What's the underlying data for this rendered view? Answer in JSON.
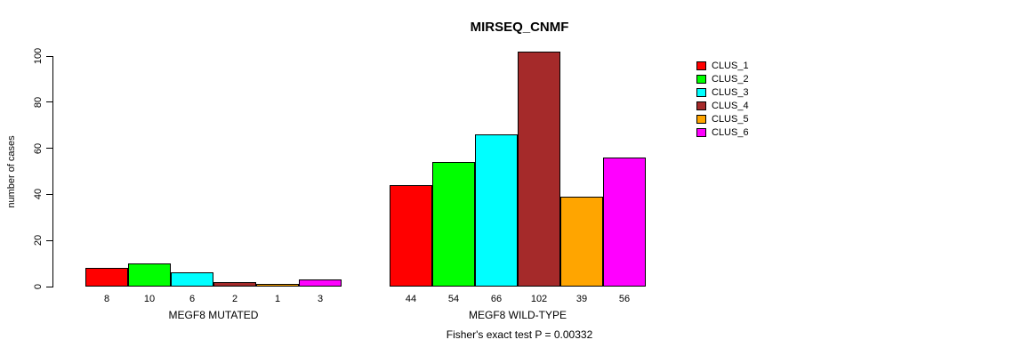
{
  "title": "MIRSEQ_CNMF",
  "footer": "Fisher's exact test P = 0.00332",
  "y_axis": {
    "label": "number of cases"
  },
  "legend": {
    "items": [
      {
        "label": "CLUS_1",
        "color": "#ff0000"
      },
      {
        "label": "CLUS_2",
        "color": "#00ff00"
      },
      {
        "label": "CLUS_3",
        "color": "#00ffff"
      },
      {
        "label": "CLUS_4",
        "color": "#a52a2a"
      },
      {
        "label": "CLUS_5",
        "color": "#ffa500"
      },
      {
        "label": "CLUS_6",
        "color": "#ff00ff"
      }
    ]
  },
  "chart_data": {
    "type": "bar",
    "title": "MIRSEQ_CNMF",
    "ylabel": "number of cases",
    "xlabel": "",
    "ylim": [
      0,
      100
    ],
    "yticks": [
      0,
      20,
      40,
      60,
      80,
      100
    ],
    "grid": false,
    "legend_position": "right",
    "series": [
      "CLUS_1",
      "CLUS_2",
      "CLUS_3",
      "CLUS_4",
      "CLUS_5",
      "CLUS_6"
    ],
    "series_colors": [
      "#ff0000",
      "#00ff00",
      "#00ffff",
      "#a52a2a",
      "#ffa500",
      "#ff00ff"
    ],
    "groups": [
      {
        "label": "MEGF8 MUTATED",
        "values": [
          8,
          10,
          6,
          2,
          1,
          3
        ]
      },
      {
        "label": "MEGF8 WILD-TYPE",
        "values": [
          44,
          54,
          66,
          102,
          39,
          56
        ]
      }
    ],
    "bar_value_labels_shown": true,
    "annotation": "Fisher's exact test P = 0.00332"
  }
}
